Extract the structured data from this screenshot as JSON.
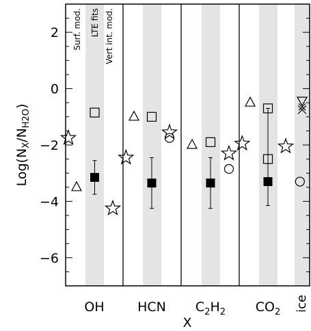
{
  "chart_data": {
    "type": "scatter",
    "title": "",
    "xlabel": "X",
    "ylabel": "Log(N_X/N_H2O)",
    "ylim": [
      -7,
      3
    ],
    "yticks": [
      2,
      0,
      -2,
      -4,
      -6
    ],
    "ytick_labels": [
      "2",
      "0",
      "−2",
      "−4",
      "−6"
    ],
    "grid": false,
    "groups": [
      "OH",
      "HCN",
      "C2H2",
      "CO2",
      "ice"
    ],
    "group_labels": [
      {
        "base": "OH",
        "sub": ""
      },
      {
        "base": "HCN",
        "sub": ""
      },
      {
        "base": "C",
        "sub": "2",
        "base2": "H",
        "sub2": "2"
      },
      {
        "base": "CO",
        "sub": "2"
      },
      {
        "base": "ice",
        "sub": ""
      }
    ],
    "column_annotations": [
      "Surf. mod.",
      "LTE fits",
      "Vert int. mod."
    ],
    "series": [
      {
        "name": "",
        "marker": "triangle",
        "points": [
          {
            "group": "OH",
            "slot": 0,
            "y": -3.5
          },
          {
            "group": "HCN",
            "slot": 0,
            "y": -1.0
          },
          {
            "group": "C2H2",
            "slot": 0,
            "y": -2.0
          },
          {
            "group": "CO2",
            "slot": 0,
            "y": -0.5
          }
        ]
      },
      {
        "name": "",
        "marker": "star",
        "points": [
          {
            "group": "OH",
            "slot": -0.45,
            "y": -1.75
          },
          {
            "group": "OH",
            "slot": 2,
            "y": -4.25
          },
          {
            "group": "HCN",
            "slot": -0.45,
            "y": -2.45
          },
          {
            "group": "HCN",
            "slot": 2,
            "y": -1.55
          },
          {
            "group": "C2H2",
            "slot": 2,
            "y": -2.3
          },
          {
            "group": "CO2",
            "slot": -0.45,
            "y": -1.95
          },
          {
            "group": "CO2",
            "slot": 2,
            "y": -2.05
          }
        ]
      },
      {
        "name": "",
        "marker": "open-square",
        "points": [
          {
            "group": "OH",
            "slot": 1,
            "y": -0.85
          },
          {
            "group": "HCN",
            "slot": 1,
            "y": -1.0
          },
          {
            "group": "C2H2",
            "slot": 1,
            "y": -1.9
          },
          {
            "group": "CO2",
            "slot": 1,
            "y": -0.7
          },
          {
            "group": "CO2",
            "slot": 1,
            "y": -2.5
          }
        ]
      },
      {
        "name": "",
        "marker": "circle",
        "points": [
          {
            "group": "HCN",
            "slot": 2,
            "y": -1.75
          },
          {
            "group": "C2H2",
            "slot": 2,
            "y": -2.85
          },
          {
            "group": "CO2",
            "slot": 2.8,
            "y": -3.3
          }
        ]
      },
      {
        "name": "",
        "marker": "filled-square",
        "points": [
          {
            "group": "OH",
            "slot": 1,
            "y": -3.15,
            "ylo": -3.75,
            "yhi": -2.55
          },
          {
            "group": "HCN",
            "slot": 1,
            "y": -3.35,
            "ylo": -4.25,
            "yhi": -2.45
          },
          {
            "group": "C2H2",
            "slot": 1,
            "y": -3.35,
            "ylo": -4.25,
            "yhi": -2.45
          },
          {
            "group": "CO2",
            "slot": 1,
            "y": -3.3,
            "ylo": -4.15,
            "yhi": -0.7
          }
        ]
      },
      {
        "name": "",
        "marker": "down-triangle",
        "points": [
          {
            "group": "ice",
            "slot": 0,
            "y": -0.45
          }
        ]
      },
      {
        "name": "",
        "marker": "cross",
        "points": [
          {
            "group": "ice",
            "slot": 0,
            "y": -0.75
          }
        ]
      },
      {
        "name": "",
        "marker": "x-mark",
        "points": [
          {
            "group": "ice",
            "slot": 0,
            "y": -0.65
          }
        ]
      }
    ]
  }
}
